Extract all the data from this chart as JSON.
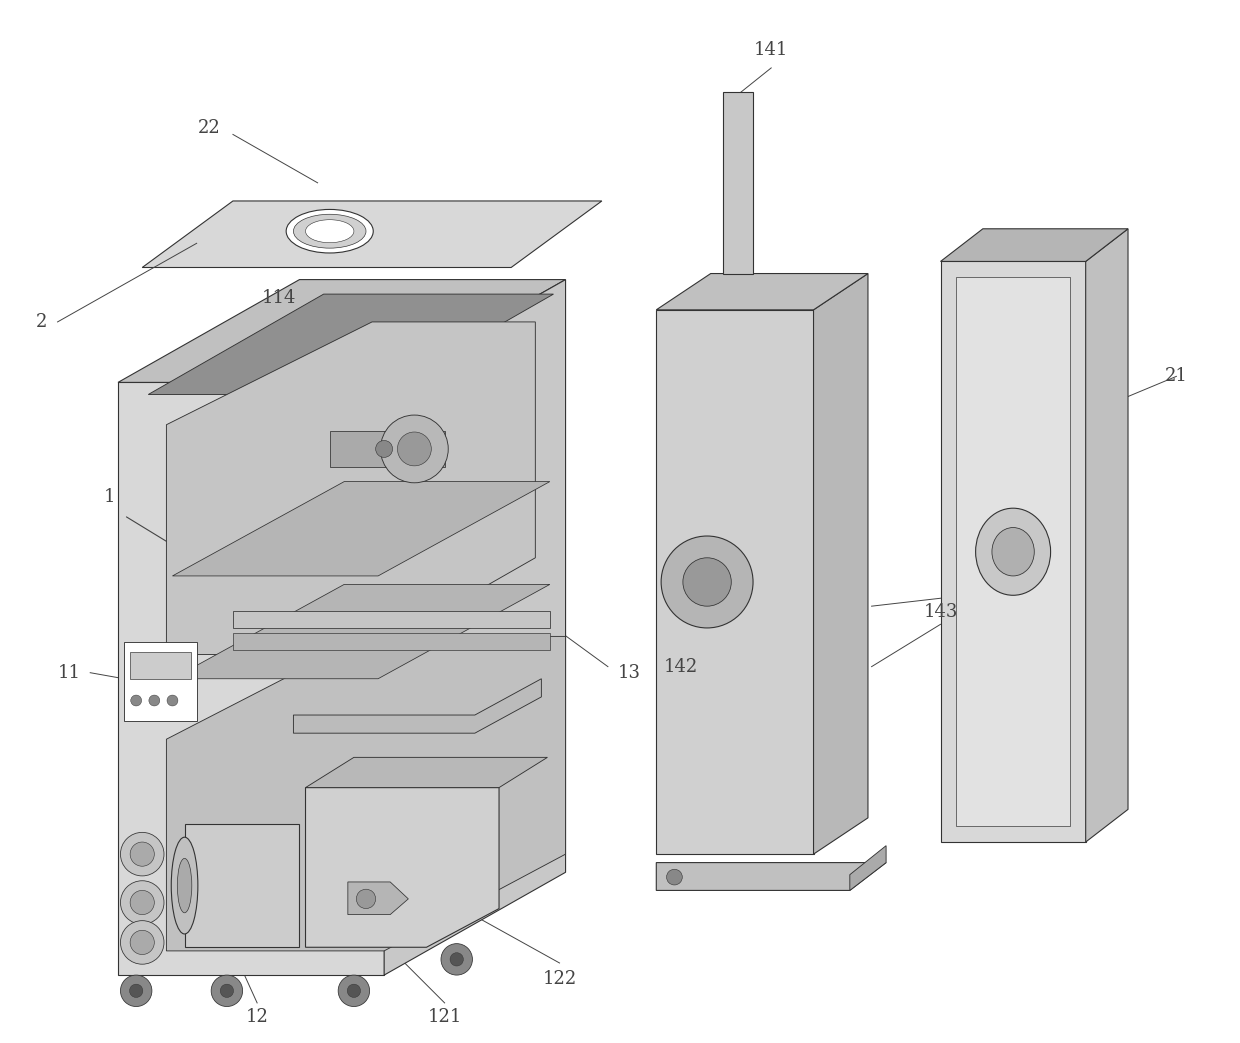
{
  "title": "",
  "background_color": "#ffffff",
  "line_color": "#333333",
  "label_color": "#444444",
  "fig_width": 12.4,
  "fig_height": 10.43,
  "lw": 0.8,
  "fs": 13
}
